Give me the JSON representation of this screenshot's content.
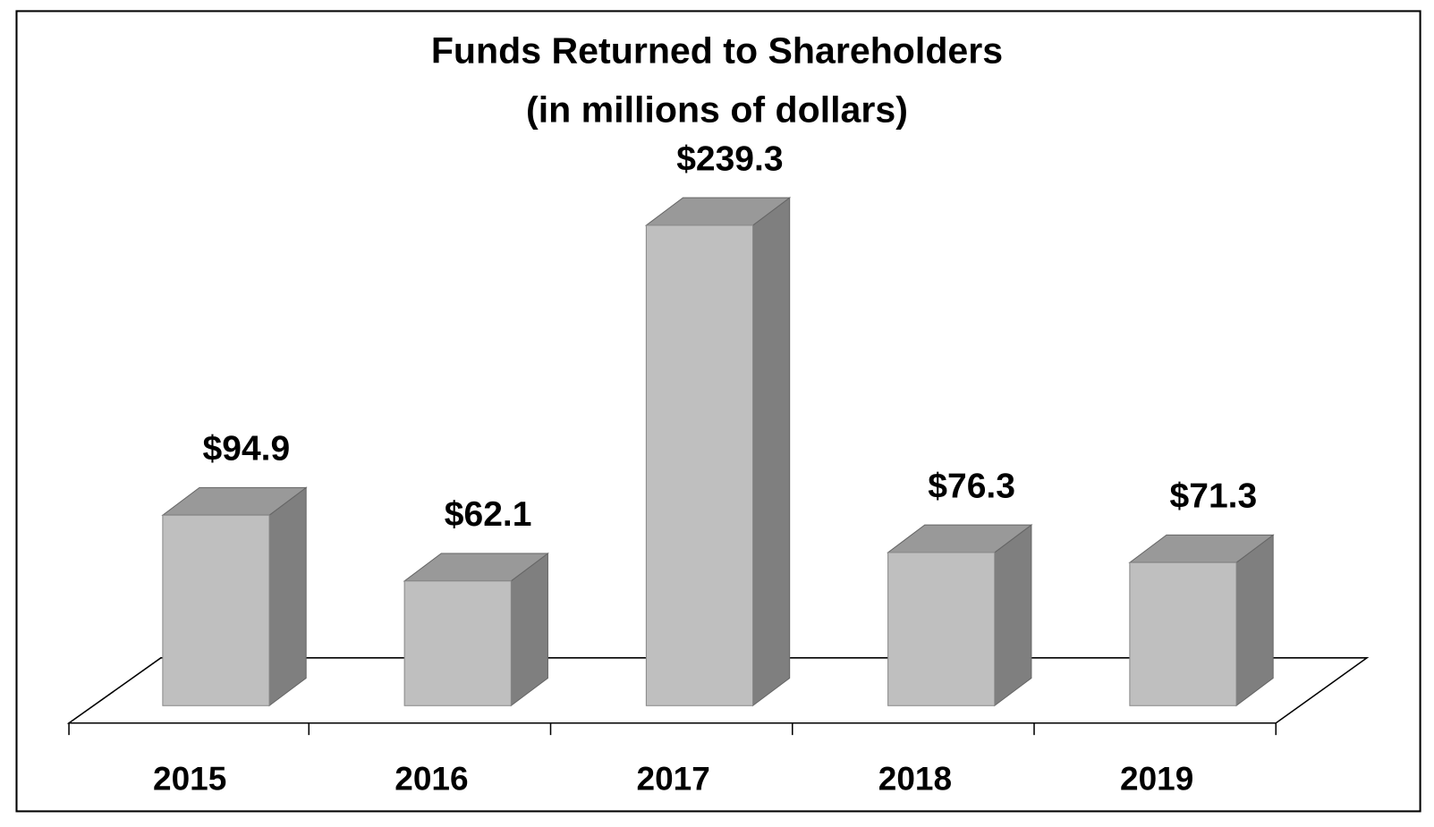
{
  "chart_data": {
    "type": "bar3d",
    "title": "Funds Returned to Shareholders",
    "subtitle": "(in millions of dollars)",
    "categories": [
      "2015",
      "2016",
      "2017",
      "2018",
      "2019"
    ],
    "values": [
      94.9,
      62.1,
      239.3,
      76.3,
      71.3
    ],
    "value_labels": [
      "$94.9",
      "$62.1",
      "$239.3",
      "$76.3",
      "$71.3"
    ],
    "color": "#bfbfbf"
  }
}
